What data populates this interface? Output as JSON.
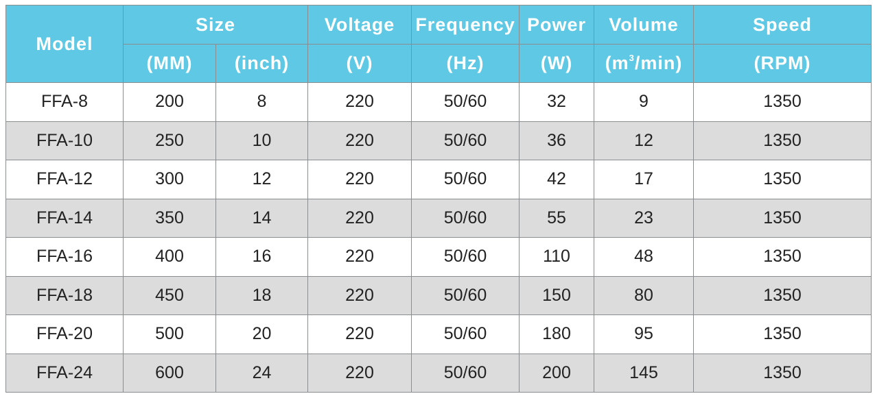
{
  "header": {
    "model": "Model",
    "size": "Size",
    "size_mm": "(MM)",
    "size_inch": "(inch)",
    "voltage": "Voltage",
    "voltage_unit": "(V)",
    "frequency": "Frequency",
    "frequency_unit": "(Hz)",
    "power": "Power",
    "power_unit": "(W)",
    "volume": "Volume",
    "volume_unit_pre": "(m",
    "volume_unit_sup": "3",
    "volume_unit_post": "/min)",
    "speed": "Speed",
    "speed_unit": "(RPM)"
  },
  "rows": [
    [
      "FFA-8",
      "200",
      "8",
      "220",
      "50/60",
      "32",
      "9",
      "1350"
    ],
    [
      "FFA-10",
      "250",
      "10",
      "220",
      "50/60",
      "36",
      "12",
      "1350"
    ],
    [
      "FFA-12",
      "300",
      "12",
      "220",
      "50/60",
      "42",
      "17",
      "1350"
    ],
    [
      "FFA-14",
      "350",
      "14",
      "220",
      "50/60",
      "55",
      "23",
      "1350"
    ],
    [
      "FFA-16",
      "400",
      "16",
      "220",
      "50/60",
      "110",
      "48",
      "1350"
    ],
    [
      "FFA-18",
      "450",
      "18",
      "220",
      "50/60",
      "150",
      "80",
      "1350"
    ],
    [
      "FFA-20",
      "500",
      "20",
      "220",
      "50/60",
      "180",
      "95",
      "1350"
    ],
    [
      "FFA-24",
      "600",
      "24",
      "220",
      "50/60",
      "200",
      "145",
      "1350"
    ]
  ],
  "colors": {
    "header_bg": "#5ec8e5",
    "header_text": "#ffffff",
    "row_alt_bg": "#dcdcdd",
    "border": "#8a8d90"
  }
}
